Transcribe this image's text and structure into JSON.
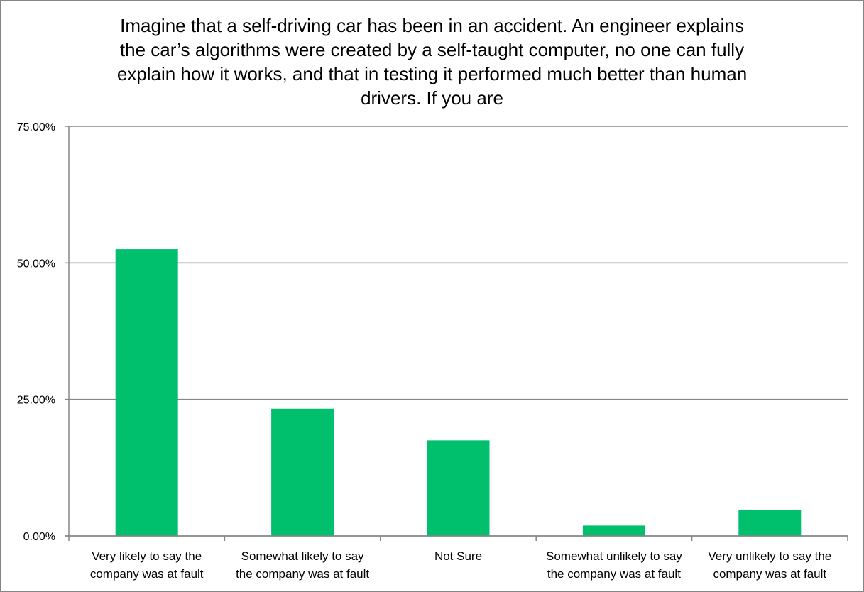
{
  "chart_data": {
    "type": "bar",
    "title": "Imagine that a self-driving car has been in an accident.  An engineer explains the car’s algorithms were created by a self-taught computer, no one can fully explain how it works, and that in testing it performed much better than human drivers.  If you are",
    "categories": [
      [
        "Very likely to say the",
        "company was at fault"
      ],
      [
        "Somewhat likely to say",
        "the company was at fault"
      ],
      [
        "Not Sure"
      ],
      [
        "Somewhat unlikely to say",
        "the company was at fault"
      ],
      [
        "Very unlikely to say the",
        "company was at fault"
      ]
    ],
    "values": [
      52.5,
      23.3,
      17.5,
      1.9,
      4.8
    ],
    "ylim": [
      0,
      75
    ],
    "yticks": [
      0,
      25,
      50,
      75
    ],
    "ytick_labels": [
      "0.00%",
      "25.00%",
      "50.00%",
      "75.00%"
    ],
    "grid": true,
    "bar_color": "#00c06e",
    "xlabel": "",
    "ylabel": ""
  }
}
